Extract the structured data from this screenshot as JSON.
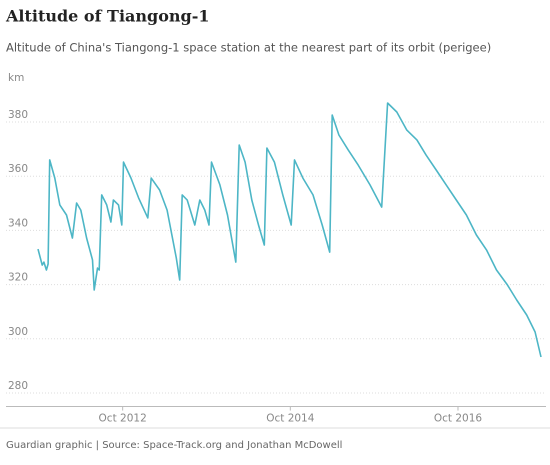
{
  "chart_data": {
    "type": "line",
    "title": "Altitude of Tiangong-1",
    "subtitle": "Altitude of China's Tiangong-1 space station at the nearest part of its orbit (perigee)",
    "y_label": "km",
    "source": "Guardian graphic | Source: Space-Track.org and Jonathan McDowell",
    "color": "#4db6c6",
    "grid": true,
    "xlim": [
      2011.74,
      2017.8
    ],
    "ylim": [
      275,
      392
    ],
    "yticks": [
      280,
      300,
      320,
      340,
      360,
      380
    ],
    "xticks": [
      {
        "value": 2012.75,
        "label": "Oct 2012"
      },
      {
        "value": 2014.75,
        "label": "Oct 2014"
      },
      {
        "value": 2016.75,
        "label": "Oct 2016"
      }
    ],
    "x": [
      2011.74,
      2011.79,
      2011.81,
      2011.84,
      2011.86,
      2011.88,
      2011.94,
      2012.0,
      2012.08,
      2012.15,
      2012.2,
      2012.25,
      2012.32,
      2012.39,
      2012.41,
      2012.45,
      2012.47,
      2012.5,
      2012.56,
      2012.61,
      2012.64,
      2012.7,
      2012.74,
      2012.76,
      2012.85,
      2012.94,
      2013.05,
      2013.09,
      2013.19,
      2013.28,
      2013.39,
      2013.43,
      2013.46,
      2013.52,
      2013.61,
      2013.67,
      2013.73,
      2013.78,
      2013.81,
      2013.91,
      2014.0,
      2014.1,
      2014.14,
      2014.21,
      2014.29,
      2014.37,
      2014.44,
      2014.47,
      2014.56,
      2014.66,
      2014.76,
      2014.8,
      2014.9,
      2015.02,
      2015.13,
      2015.22,
      2015.25,
      2015.33,
      2015.44,
      2015.56,
      2015.7,
      2015.84,
      2015.91,
      2016.02,
      2016.14,
      2016.26,
      2016.37,
      2016.49,
      2016.61,
      2016.73,
      2016.85,
      2016.97,
      2017.09,
      2017.21,
      2017.34,
      2017.45,
      2017.57,
      2017.67,
      2017.74
    ],
    "values": [
      333.1,
      327.2,
      328.3,
      325.4,
      327.6,
      366.0,
      359.3,
      349.4,
      345.7,
      337.2,
      350.1,
      347.5,
      337.2,
      329.1,
      318.0,
      326.1,
      325.4,
      353.1,
      349.4,
      343.1,
      351.2,
      349.4,
      342.0,
      365.2,
      359.3,
      352.0,
      344.6,
      359.3,
      354.9,
      347.5,
      329.8,
      321.7,
      353.1,
      351.2,
      342.0,
      351.2,
      347.5,
      342.0,
      365.2,
      356.8,
      345.7,
      328.3,
      371.5,
      365.2,
      351.2,
      342.0,
      334.6,
      370.4,
      365.2,
      353.1,
      342.0,
      366.0,
      359.3,
      353.1,
      342.0,
      332.0,
      382.6,
      375.2,
      369.7,
      364.1,
      356.8,
      348.6,
      387.0,
      383.7,
      377.0,
      373.4,
      367.8,
      362.3,
      356.8,
      351.2,
      345.7,
      338.3,
      332.8,
      325.4,
      319.9,
      314.3,
      308.8,
      302.5,
      293.3
    ]
  }
}
